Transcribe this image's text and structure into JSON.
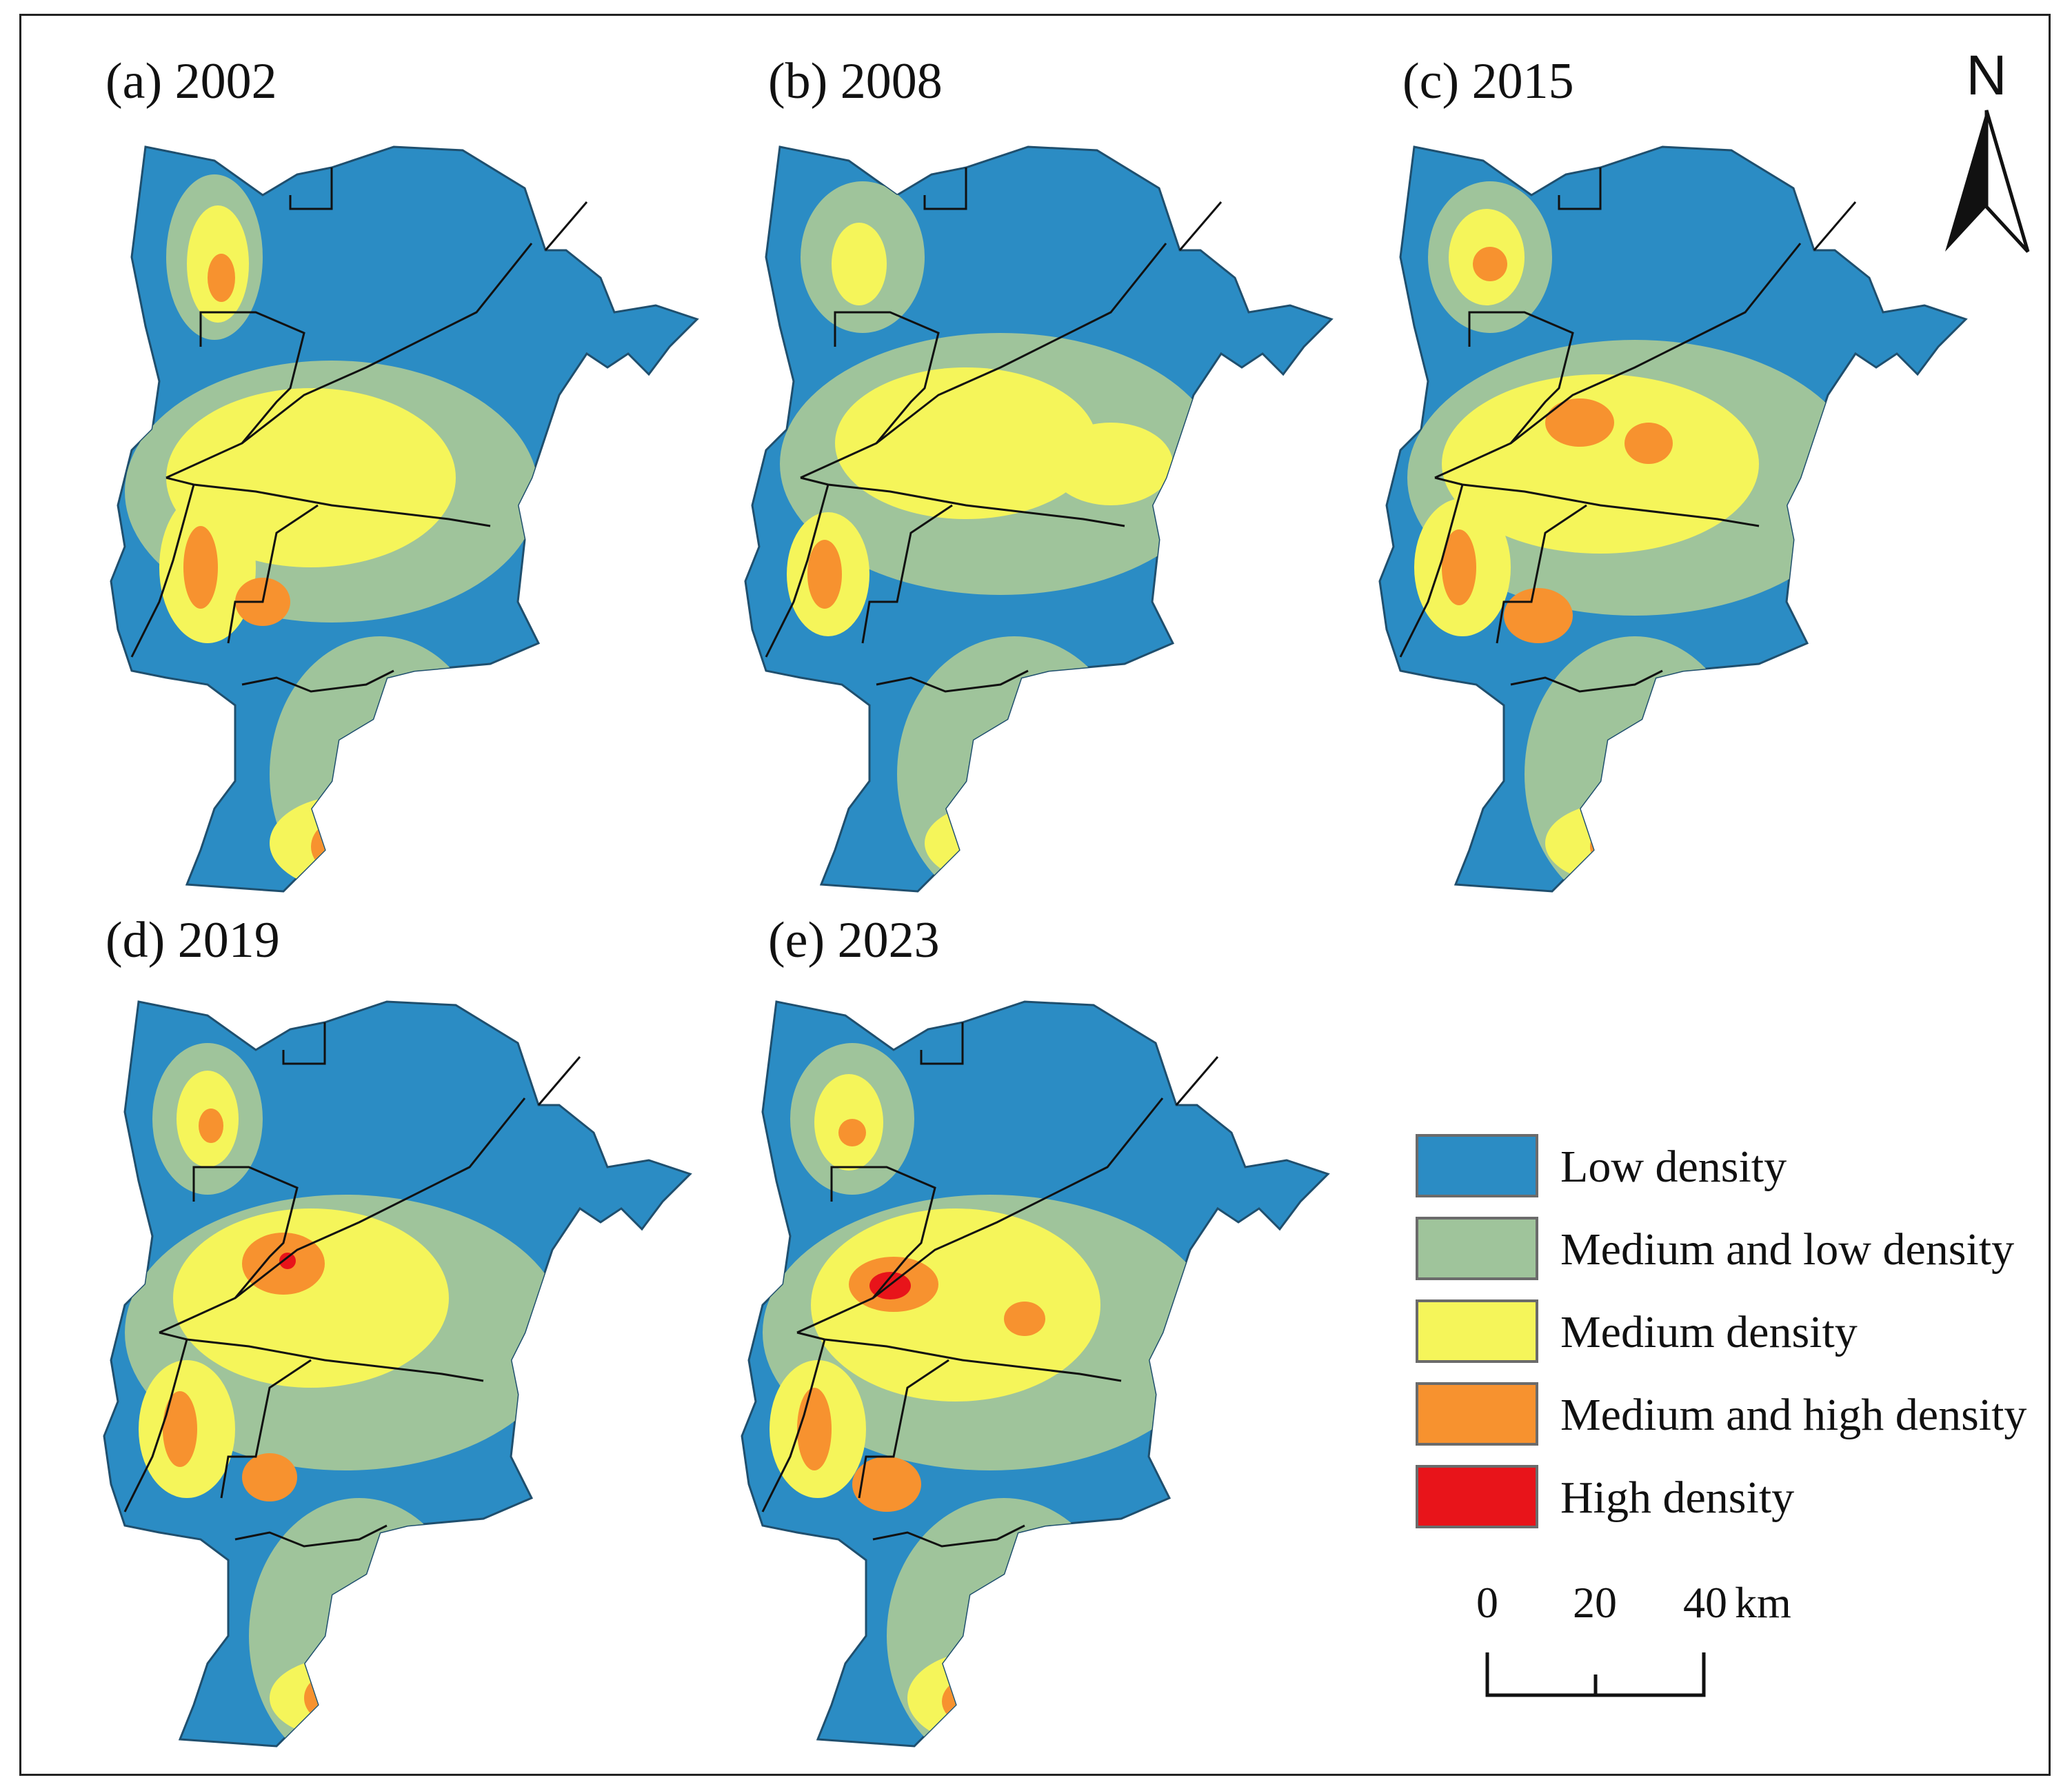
{
  "panels": [
    {
      "label": "(a)",
      "year": "2002"
    },
    {
      "label": "(b)",
      "year": "2008"
    },
    {
      "label": "(c)",
      "year": "2015"
    },
    {
      "label": "(d)",
      "year": "2019"
    },
    {
      "label": "(e)",
      "year": "2023"
    }
  ],
  "legend": {
    "items": [
      {
        "label": "Low density",
        "color": "#2b8cc4"
      },
      {
        "label": "Medium and low density",
        "color": "#9fc49b"
      },
      {
        "label": "Medium density",
        "color": "#f5f55a"
      },
      {
        "label": "Medium and high density",
        "color": "#f7922f"
      },
      {
        "label": "High density",
        "color": "#e8141a"
      }
    ]
  },
  "scalebar": {
    "ticks": [
      "0",
      "20",
      "40"
    ],
    "unit": "km"
  },
  "north_arrow": {
    "label": "N",
    "icon": "north-arrow-icon"
  }
}
